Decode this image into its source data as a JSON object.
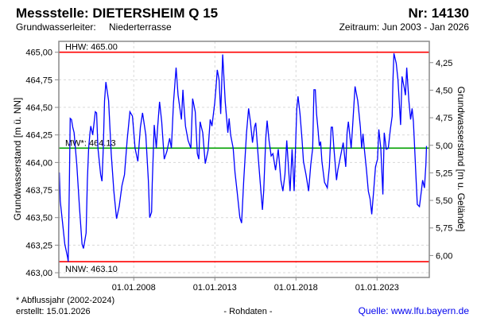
{
  "header": {
    "title": "Messstelle: DIETERSHEIM Q 15",
    "number": "Nr: 14130",
    "aquifer_label": "Grundwasserleiter:",
    "aquifer_value": "Niederterrasse",
    "period": "Zeitraum: Jun 2003 - Jan 2026"
  },
  "footer": {
    "note": "* Abflussjahr (2002-2024)",
    "created": "erstellt:  15.01.2026",
    "status": "- Rohdaten -",
    "source": "Quelle: www.lfu.bayern.de"
  },
  "chart_data": {
    "type": "line",
    "title": "Messstelle: DIETERSHEIM Q 15",
    "xlabel": "",
    "ylabel": "Grundwasserstand [m ü. NN]",
    "ylabel_right": "Grundwasserstand [m u. Gelände]",
    "xlim": [
      2003.38,
      2026.22
    ],
    "ylim": [
      462.957,
      465.099
    ],
    "ground_level_m": 469.156,
    "grid": true,
    "y_ticks": [
      {
        "value": 463.0,
        "label": "463,00"
      },
      {
        "value": 463.25,
        "label": "463,25"
      },
      {
        "value": 463.5,
        "label": "463,50"
      },
      {
        "value": 463.75,
        "label": "463,75"
      },
      {
        "value": 464.0,
        "label": "464,00"
      },
      {
        "value": 464.25,
        "label": "464,25"
      },
      {
        "value": 464.5,
        "label": "464,50"
      },
      {
        "value": 464.75,
        "label": "464,75"
      },
      {
        "value": 465.0,
        "label": "465,00"
      }
    ],
    "y_ticks_right": [
      {
        "value": 4.25,
        "label": "4,25"
      },
      {
        "value": 4.5,
        "label": "4,50"
      },
      {
        "value": 4.75,
        "label": "4,75"
      },
      {
        "value": 5.0,
        "label": "5,00"
      },
      {
        "value": 5.25,
        "label": "5,25"
      },
      {
        "value": 5.5,
        "label": "5,50"
      },
      {
        "value": 5.75,
        "label": "5,75"
      },
      {
        "value": 6.0,
        "label": "6,00"
      }
    ],
    "x_ticks": [
      {
        "value": 2008,
        "label": "01.01.2008"
      },
      {
        "value": 2013,
        "label": "01.01.2013"
      },
      {
        "value": 2018,
        "label": "01.01.2018"
      },
      {
        "value": 2023,
        "label": "01.01.2023"
      }
    ],
    "reference_lines": [
      {
        "name": "HHW",
        "label": "HHW: 465.00",
        "value": 465.0,
        "color": "#ff0000",
        "label_pos": "above"
      },
      {
        "name": "MW",
        "label": "MW*: 464.13",
        "value": 464.13,
        "color": "#00a000",
        "label_pos": "above"
      },
      {
        "name": "NNW",
        "label": "NNW: 463.10",
        "value": 463.1,
        "color": "#ff0000",
        "label_pos": "below"
      }
    ],
    "series": [
      {
        "name": "Grundwasserstand",
        "color": "#0000ff",
        "x": [
          2003.41,
          2003.47,
          2003.59,
          2003.75,
          2003.92,
          2003.96,
          2004.03,
          2004.08,
          2004.16,
          2004.24,
          2004.32,
          2004.49,
          2004.65,
          2004.81,
          2004.9,
          2005.06,
          2005.14,
          2005.22,
          2005.3,
          2005.35,
          2005.47,
          2005.63,
          2005.71,
          2005.79,
          2005.96,
          2006.04,
          2006.12,
          2006.2,
          2006.28,
          2006.45,
          2006.61,
          2006.77,
          2006.94,
          2007.1,
          2007.27,
          2007.43,
          2007.59,
          2007.76,
          2007.92,
          2008.08,
          2008.25,
          2008.41,
          2008.54,
          2008.74,
          2008.9,
          2008.98,
          2009.1,
          2009.14,
          2009.26,
          2009.39,
          2009.47,
          2009.59,
          2009.72,
          2009.88,
          2010.04,
          2010.21,
          2010.32,
          2010.45,
          2010.61,
          2010.73,
          2010.94,
          2011.03,
          2011.07,
          2011.19,
          2011.35,
          2011.52,
          2011.63,
          2011.79,
          2011.92,
          2012.01,
          2012.09,
          2012.25,
          2012.41,
          2012.58,
          2012.71,
          2012.82,
          2012.99,
          2013.07,
          2013.15,
          2013.26,
          2013.36,
          2013.48,
          2013.64,
          2013.8,
          2013.88,
          2013.97,
          2014.13,
          2014.24,
          2014.37,
          2014.54,
          2014.65,
          2014.78,
          2014.95,
          2015.08,
          2015.19,
          2015.32,
          2015.44,
          2015.52,
          2015.68,
          2015.85,
          2015.93,
          2016.01,
          2016.14,
          2016.22,
          2016.34,
          2016.47,
          2016.58,
          2016.74,
          2016.91,
          2017.07,
          2017.19,
          2017.32,
          2017.43,
          2017.56,
          2017.64,
          2017.76,
          2017.89,
          2018.05,
          2018.13,
          2018.25,
          2018.38,
          2018.46,
          2018.62,
          2018.78,
          2018.91,
          2019.03,
          2019.11,
          2019.19,
          2019.27,
          2019.36,
          2019.44,
          2019.52,
          2019.6,
          2019.76,
          2019.93,
          2020.06,
          2020.17,
          2020.25,
          2020.34,
          2020.5,
          2020.58,
          2020.74,
          2020.91,
          2021.07,
          2021.15,
          2021.23,
          2021.4,
          2021.48,
          2021.56,
          2021.64,
          2021.81,
          2021.97,
          2022.05,
          2022.13,
          2022.21,
          2022.35,
          2022.46,
          2022.57,
          2022.67,
          2022.79,
          2022.9,
          2023.03,
          2023.11,
          2023.23,
          2023.36,
          2023.44,
          2023.57,
          2023.69,
          2023.82,
          2023.93,
          2023.98,
          2024.04,
          2024.18,
          2024.29,
          2024.37,
          2024.45,
          2024.54,
          2024.67,
          2024.75,
          2024.83,
          2024.96,
          2025.07,
          2025.16,
          2025.24,
          2025.32,
          2025.4,
          2025.48,
          2025.61,
          2025.73,
          2025.81,
          2025.92,
          2026.01,
          2026.05
        ],
        "y": [
          463.91,
          463.65,
          463.48,
          463.26,
          463.14,
          463.1,
          463.84,
          464.4,
          464.39,
          464.32,
          464.27,
          463.98,
          463.6,
          463.26,
          463.22,
          463.36,
          463.84,
          464.13,
          464.27,
          464.33,
          464.25,
          464.46,
          464.45,
          464.13,
          463.89,
          463.83,
          464.13,
          464.56,
          464.73,
          464.56,
          464.08,
          463.74,
          463.49,
          463.6,
          463.79,
          463.89,
          464.2,
          464.46,
          464.42,
          464.13,
          464.01,
          464.32,
          464.45,
          464.25,
          463.84,
          463.5,
          463.55,
          463.81,
          464.34,
          464.13,
          464.32,
          464.55,
          464.37,
          464.03,
          464.1,
          464.22,
          464.13,
          464.54,
          464.86,
          464.61,
          464.39,
          464.66,
          464.56,
          464.33,
          464.2,
          464.13,
          464.58,
          464.46,
          464.08,
          464.03,
          464.37,
          464.27,
          463.99,
          464.11,
          464.39,
          464.33,
          464.54,
          464.68,
          464.84,
          464.75,
          464.44,
          464.98,
          464.55,
          464.27,
          464.4,
          464.25,
          464.13,
          463.91,
          463.74,
          463.5,
          463.45,
          463.84,
          464.27,
          464.49,
          464.37,
          464.18,
          464.32,
          464.36,
          464.03,
          463.72,
          463.57,
          463.74,
          464.22,
          464.38,
          464.2,
          464.06,
          464.08,
          463.93,
          464.12,
          463.84,
          463.74,
          463.89,
          464.2,
          463.91,
          463.74,
          464.12,
          463.74,
          464.49,
          464.6,
          464.44,
          464.2,
          464.01,
          463.89,
          463.74,
          463.98,
          464.13,
          464.66,
          464.66,
          464.44,
          464.3,
          464.15,
          464.19,
          464.01,
          463.82,
          463.77,
          463.96,
          464.32,
          464.32,
          464.13,
          463.84,
          463.93,
          464.05,
          464.18,
          463.96,
          464.27,
          464.37,
          464.13,
          464.3,
          464.49,
          464.69,
          464.56,
          464.32,
          464.13,
          464.26,
          464.13,
          463.93,
          463.74,
          463.67,
          463.53,
          463.74,
          463.96,
          464.03,
          464.3,
          464.13,
          463.71,
          464.27,
          464.12,
          464.13,
          464.3,
          464.42,
          464.75,
          464.99,
          464.9,
          464.75,
          464.54,
          464.34,
          464.78,
          464.68,
          464.61,
          464.86,
          464.56,
          464.39,
          464.49,
          464.37,
          464.13,
          463.86,
          463.62,
          463.6,
          463.74,
          463.84,
          463.77,
          463.98,
          464.15
        ]
      }
    ]
  }
}
